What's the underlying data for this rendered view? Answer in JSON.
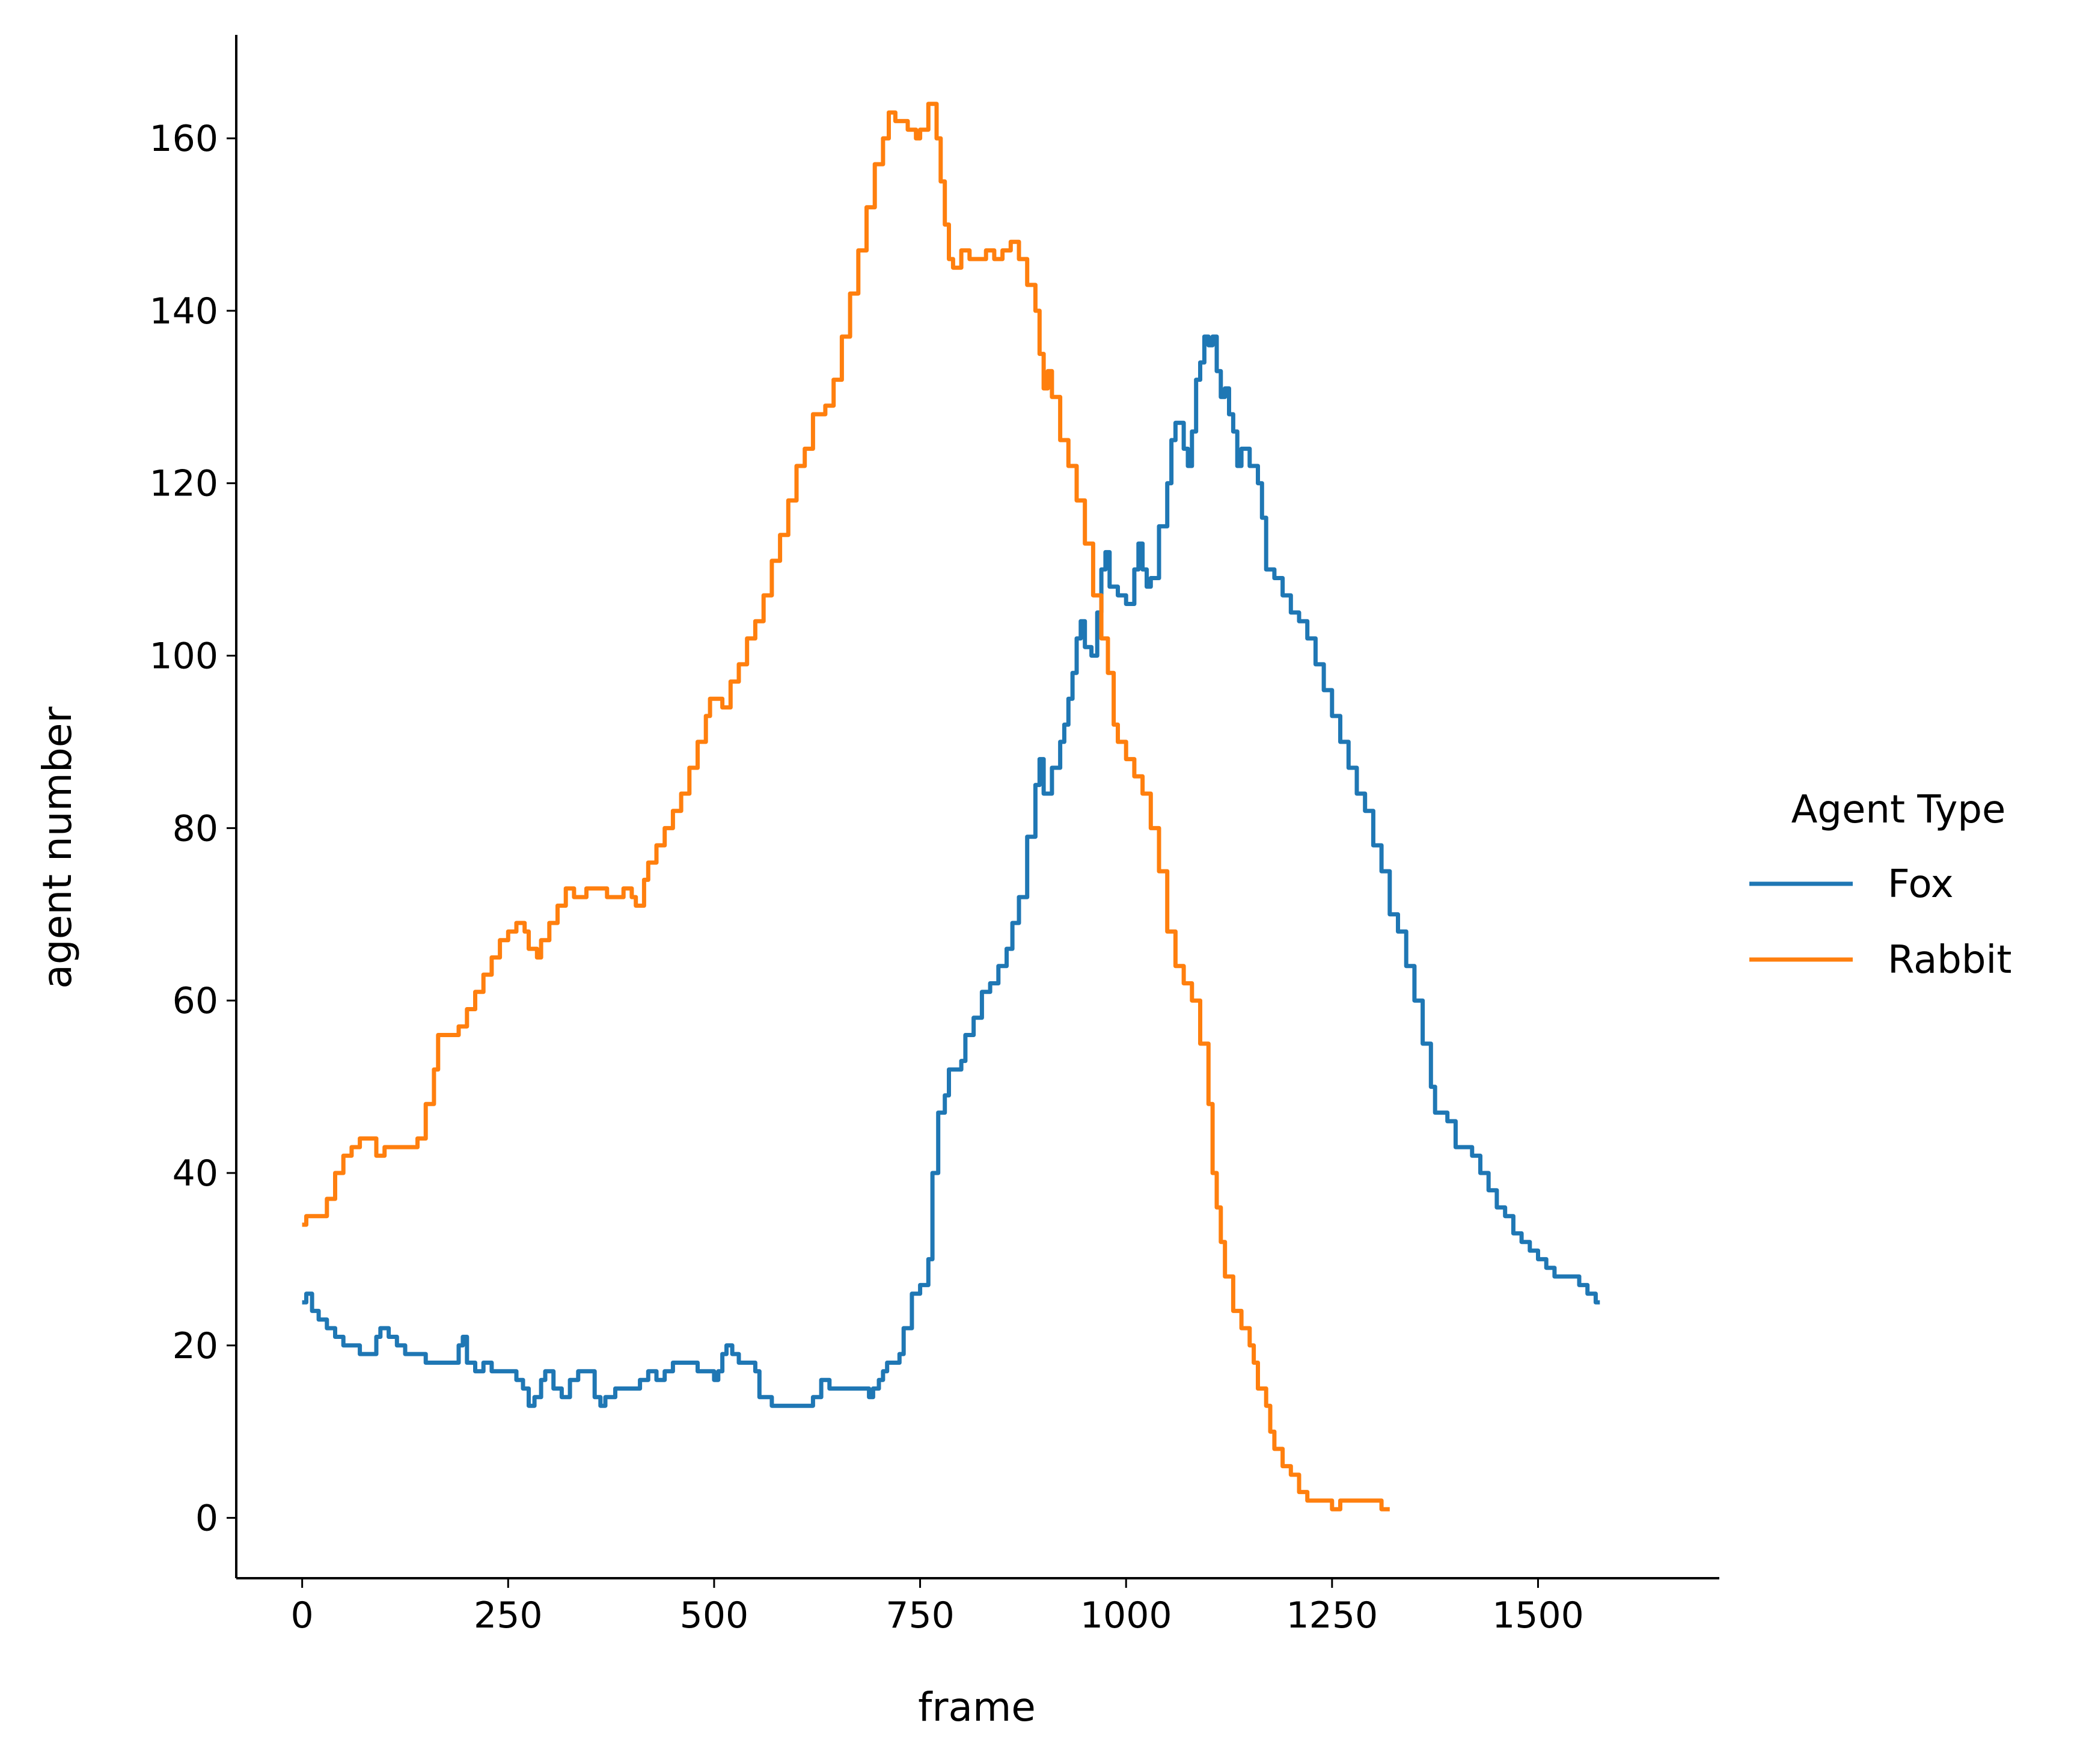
{
  "chart_data": {
    "type": "line",
    "xlabel": "frame",
    "ylabel": "agent number",
    "xlim": [
      -80,
      1720
    ],
    "ylim": [
      -7,
      172
    ],
    "xticks": [
      0,
      250,
      500,
      750,
      1000,
      1250,
      1500
    ],
    "yticks": [
      0,
      20,
      40,
      60,
      80,
      100,
      120,
      140,
      160
    ],
    "grid": false,
    "legend": {
      "title": "Agent Type",
      "placement": "right"
    },
    "series": [
      {
        "name": "Fox",
        "color": "#1f77b4",
        "points": [
          [
            0,
            25
          ],
          [
            5,
            26
          ],
          [
            12,
            24
          ],
          [
            20,
            23
          ],
          [
            30,
            22
          ],
          [
            40,
            21
          ],
          [
            50,
            20
          ],
          [
            60,
            20
          ],
          [
            70,
            19
          ],
          [
            80,
            19
          ],
          [
            90,
            21
          ],
          [
            95,
            22
          ],
          [
            105,
            21
          ],
          [
            115,
            20
          ],
          [
            125,
            19
          ],
          [
            150,
            18
          ],
          [
            180,
            18
          ],
          [
            190,
            20
          ],
          [
            195,
            21
          ],
          [
            200,
            18
          ],
          [
            210,
            17
          ],
          [
            220,
            18
          ],
          [
            230,
            17
          ],
          [
            250,
            17
          ],
          [
            260,
            16
          ],
          [
            268,
            15
          ],
          [
            275,
            13
          ],
          [
            282,
            14
          ],
          [
            290,
            16
          ],
          [
            295,
            17
          ],
          [
            305,
            15
          ],
          [
            315,
            14
          ],
          [
            325,
            16
          ],
          [
            335,
            17
          ],
          [
            345,
            17
          ],
          [
            355,
            14
          ],
          [
            362,
            13
          ],
          [
            368,
            14
          ],
          [
            380,
            15
          ],
          [
            400,
            15
          ],
          [
            410,
            16
          ],
          [
            420,
            17
          ],
          [
            430,
            16
          ],
          [
            440,
            17
          ],
          [
            450,
            18
          ],
          [
            470,
            18
          ],
          [
            480,
            17
          ],
          [
            500,
            16
          ],
          [
            505,
            17
          ],
          [
            510,
            19
          ],
          [
            515,
            20
          ],
          [
            522,
            19
          ],
          [
            530,
            18
          ],
          [
            540,
            18
          ],
          [
            550,
            17
          ],
          [
            555,
            14
          ],
          [
            570,
            13
          ],
          [
            580,
            13
          ],
          [
            600,
            13
          ],
          [
            610,
            13
          ],
          [
            620,
            14
          ],
          [
            630,
            16
          ],
          [
            640,
            15
          ],
          [
            680,
            15
          ],
          [
            688,
            14
          ],
          [
            693,
            15
          ],
          [
            700,
            16
          ],
          [
            705,
            17
          ],
          [
            710,
            18
          ],
          [
            725,
            19
          ],
          [
            730,
            22
          ],
          [
            740,
            26
          ],
          [
            750,
            27
          ],
          [
            760,
            30
          ],
          [
            765,
            40
          ],
          [
            772,
            47
          ],
          [
            780,
            49
          ],
          [
            785,
            52
          ],
          [
            800,
            53
          ],
          [
            805,
            56
          ],
          [
            815,
            58
          ],
          [
            825,
            61
          ],
          [
            835,
            62
          ],
          [
            845,
            64
          ],
          [
            855,
            66
          ],
          [
            862,
            69
          ],
          [
            870,
            72
          ],
          [
            880,
            79
          ],
          [
            890,
            85
          ],
          [
            895,
            88
          ],
          [
            900,
            84
          ],
          [
            910,
            87
          ],
          [
            920,
            90
          ],
          [
            925,
            92
          ],
          [
            930,
            95
          ],
          [
            935,
            98
          ],
          [
            940,
            102
          ],
          [
            945,
            104
          ],
          [
            950,
            101
          ],
          [
            958,
            100
          ],
          [
            965,
            105
          ],
          [
            970,
            110
          ],
          [
            975,
            112
          ],
          [
            980,
            108
          ],
          [
            990,
            107
          ],
          [
            1000,
            106
          ],
          [
            1010,
            110
          ],
          [
            1015,
            113
          ],
          [
            1020,
            110
          ],
          [
            1025,
            108
          ],
          [
            1030,
            109
          ],
          [
            1040,
            115
          ],
          [
            1050,
            120
          ],
          [
            1055,
            125
          ],
          [
            1060,
            127
          ],
          [
            1070,
            124
          ],
          [
            1075,
            122
          ],
          [
            1080,
            126
          ],
          [
            1085,
            132
          ],
          [
            1090,
            134
          ],
          [
            1095,
            137
          ],
          [
            1100,
            136
          ],
          [
            1105,
            137
          ],
          [
            1110,
            133
          ],
          [
            1115,
            130
          ],
          [
            1120,
            131
          ],
          [
            1125,
            128
          ],
          [
            1130,
            126
          ],
          [
            1135,
            122
          ],
          [
            1140,
            124
          ],
          [
            1150,
            122
          ],
          [
            1160,
            120
          ],
          [
            1165,
            116
          ],
          [
            1170,
            110
          ],
          [
            1180,
            109
          ],
          [
            1190,
            107
          ],
          [
            1200,
            105
          ],
          [
            1210,
            104
          ],
          [
            1220,
            102
          ],
          [
            1230,
            99
          ],
          [
            1240,
            96
          ],
          [
            1250,
            93
          ],
          [
            1260,
            90
          ],
          [
            1270,
            87
          ],
          [
            1280,
            84
          ],
          [
            1290,
            82
          ],
          [
            1300,
            78
          ],
          [
            1310,
            75
          ],
          [
            1320,
            70
          ],
          [
            1330,
            68
          ],
          [
            1340,
            64
          ],
          [
            1350,
            60
          ],
          [
            1360,
            55
          ],
          [
            1370,
            50
          ],
          [
            1375,
            47
          ],
          [
            1390,
            46
          ],
          [
            1400,
            43
          ],
          [
            1420,
            42
          ],
          [
            1430,
            40
          ],
          [
            1440,
            38
          ],
          [
            1450,
            36
          ],
          [
            1460,
            35
          ],
          [
            1470,
            33
          ],
          [
            1480,
            32
          ],
          [
            1490,
            31
          ],
          [
            1500,
            30
          ],
          [
            1510,
            29
          ],
          [
            1520,
            28
          ],
          [
            1540,
            28
          ],
          [
            1550,
            27
          ],
          [
            1560,
            26
          ],
          [
            1570,
            25
          ],
          [
            1575,
            25
          ]
        ]
      },
      {
        "name": "Rabbit",
        "color": "#ff7f0e",
        "points": [
          [
            0,
            34
          ],
          [
            5,
            35
          ],
          [
            20,
            35
          ],
          [
            30,
            37
          ],
          [
            40,
            40
          ],
          [
            50,
            42
          ],
          [
            60,
            43
          ],
          [
            70,
            44
          ],
          [
            80,
            44
          ],
          [
            90,
            42
          ],
          [
            100,
            43
          ],
          [
            130,
            43
          ],
          [
            140,
            44
          ],
          [
            150,
            48
          ],
          [
            160,
            52
          ],
          [
            165,
            56
          ],
          [
            180,
            56
          ],
          [
            190,
            57
          ],
          [
            200,
            59
          ],
          [
            210,
            61
          ],
          [
            220,
            63
          ],
          [
            230,
            65
          ],
          [
            240,
            67
          ],
          [
            250,
            68
          ],
          [
            260,
            69
          ],
          [
            270,
            68
          ],
          [
            275,
            66
          ],
          [
            285,
            65
          ],
          [
            290,
            67
          ],
          [
            300,
            69
          ],
          [
            310,
            71
          ],
          [
            320,
            73
          ],
          [
            330,
            72
          ],
          [
            345,
            73
          ],
          [
            360,
            73
          ],
          [
            370,
            72
          ],
          [
            380,
            72
          ],
          [
            390,
            73
          ],
          [
            400,
            72
          ],
          [
            405,
            71
          ],
          [
            415,
            74
          ],
          [
            420,
            76
          ],
          [
            430,
            78
          ],
          [
            440,
            80
          ],
          [
            450,
            82
          ],
          [
            460,
            84
          ],
          [
            470,
            87
          ],
          [
            480,
            90
          ],
          [
            490,
            93
          ],
          [
            495,
            95
          ],
          [
            510,
            94
          ],
          [
            520,
            97
          ],
          [
            530,
            99
          ],
          [
            540,
            102
          ],
          [
            550,
            104
          ],
          [
            560,
            107
          ],
          [
            570,
            111
          ],
          [
            580,
            114
          ],
          [
            590,
            118
          ],
          [
            600,
            122
          ],
          [
            610,
            124
          ],
          [
            620,
            128
          ],
          [
            635,
            129
          ],
          [
            645,
            132
          ],
          [
            655,
            137
          ],
          [
            665,
            142
          ],
          [
            675,
            147
          ],
          [
            685,
            152
          ],
          [
            695,
            157
          ],
          [
            705,
            160
          ],
          [
            712,
            163
          ],
          [
            720,
            162
          ],
          [
            735,
            161
          ],
          [
            745,
            160
          ],
          [
            750,
            161
          ],
          [
            760,
            164
          ],
          [
            765,
            164
          ],
          [
            770,
            160
          ],
          [
            775,
            155
          ],
          [
            780,
            150
          ],
          [
            785,
            146
          ],
          [
            790,
            145
          ],
          [
            800,
            147
          ],
          [
            810,
            146
          ],
          [
            820,
            146
          ],
          [
            830,
            147
          ],
          [
            840,
            146
          ],
          [
            850,
            147
          ],
          [
            860,
            148
          ],
          [
            870,
            146
          ],
          [
            880,
            143
          ],
          [
            890,
            140
          ],
          [
            895,
            135
          ],
          [
            900,
            131
          ],
          [
            905,
            133
          ],
          [
            910,
            130
          ],
          [
            920,
            125
          ],
          [
            930,
            122
          ],
          [
            940,
            118
          ],
          [
            950,
            113
          ],
          [
            960,
            107
          ],
          [
            970,
            102
          ],
          [
            978,
            98
          ],
          [
            985,
            92
          ],
          [
            990,
            90
          ],
          [
            1000,
            88
          ],
          [
            1010,
            86
          ],
          [
            1020,
            84
          ],
          [
            1030,
            80
          ],
          [
            1040,
            75
          ],
          [
            1050,
            68
          ],
          [
            1060,
            64
          ],
          [
            1070,
            62
          ],
          [
            1080,
            60
          ],
          [
            1090,
            55
          ],
          [
            1100,
            48
          ],
          [
            1105,
            40
          ],
          [
            1110,
            36
          ],
          [
            1115,
            32
          ],
          [
            1120,
            28
          ],
          [
            1130,
            24
          ],
          [
            1140,
            22
          ],
          [
            1150,
            20
          ],
          [
            1155,
            18
          ],
          [
            1160,
            15
          ],
          [
            1170,
            13
          ],
          [
            1175,
            10
          ],
          [
            1180,
            8
          ],
          [
            1190,
            6
          ],
          [
            1200,
            5
          ],
          [
            1210,
            3
          ],
          [
            1220,
            2
          ],
          [
            1240,
            2
          ],
          [
            1250,
            1
          ],
          [
            1260,
            2
          ],
          [
            1270,
            2
          ],
          [
            1300,
            2
          ],
          [
            1310,
            1
          ],
          [
            1320,
            1
          ]
        ]
      }
    ]
  }
}
